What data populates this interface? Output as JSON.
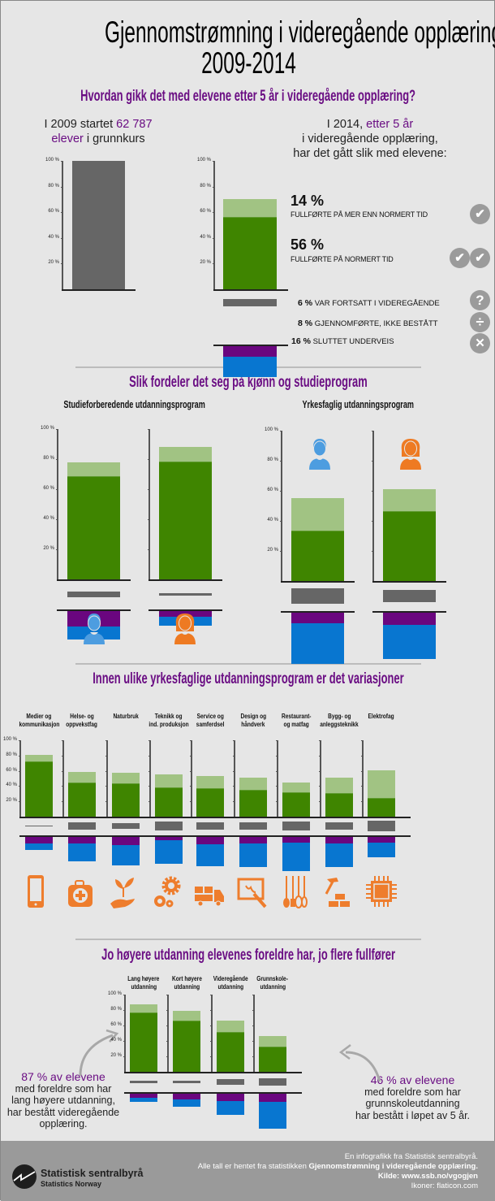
{
  "title": {
    "line1": "Gjennomstrømning i videregående opplæring,",
    "line2": "2009-2014"
  },
  "section1": {
    "heading": "Hvordan gikk det med elevene etter 5 år i videregående opplæring?",
    "left_intro": {
      "a": "I 2009 startet ",
      "b": "62 787",
      "c": "elever",
      "d": " i grunnkurs"
    },
    "right_intro": {
      "a": "I 2014, ",
      "b": "etter 5 år",
      "line2": "i videregående opplæring,",
      "line3": "har det gått slik med elevene:"
    },
    "outcomes": [
      {
        "pct": "14 %",
        "label": "FULLFØRTE PÅ MER ENN NORMERT TID",
        "icon": "check-circle-icon"
      },
      {
        "pct": "56 %",
        "label": "FULLFØRTE PÅ NORMERT TID",
        "icon": "double-check-circle-icon"
      },
      {
        "pct": "6 %",
        "label": "VAR FORTSATT I VIDEREGÅENDE",
        "icon": "question-circle-icon"
      },
      {
        "pct": "8 %",
        "label": "GJENNOMFØRTE, IKKE BESTÅTT",
        "icon": "divide-circle-icon"
      },
      {
        "pct": "16 %",
        "label": "SLUTTET UNDERVEIS",
        "icon": "x-circle-icon"
      }
    ]
  },
  "section2": {
    "heading": "Slik fordeler det seg på kjønn og studieprogram",
    "left_title": "Studieforberedende utdanningsprogram",
    "right_title": "Yrkesfaglig utdanningsprogram"
  },
  "section3": {
    "heading": "Innen ulike yrkesfaglige utdanningsprogram er det variasjoner",
    "programs": [
      {
        "l1": "Medier og",
        "l2": "kommunikasjon",
        "icon": "smartphone-icon"
      },
      {
        "l1": "Helse- og",
        "l2": "oppvekstfag",
        "icon": "first-aid-kit-icon"
      },
      {
        "l1": "Naturbruk",
        "l2": "",
        "icon": "plant-in-hand-icon"
      },
      {
        "l1": "Teknikk og",
        "l2": "ind. produksjon",
        "icon": "gears-icon"
      },
      {
        "l1": "Service og",
        "l2": "samferdsel",
        "icon": "truck-icon"
      },
      {
        "l1": "Design og",
        "l2": "håndverk",
        "icon": "easel-brush-icon"
      },
      {
        "l1": "Restaurant-",
        "l2": "og matfag",
        "icon": "kitchen-utensils-icon"
      },
      {
        "l1": "Bygg- og",
        "l2": "anleggsteknikk",
        "icon": "hammer-bricks-icon"
      },
      {
        "l1": "Elektrofag",
        "l2": "",
        "icon": "microchip-icon"
      }
    ]
  },
  "section4": {
    "heading": "Jo høyere utdanning elevenes foreldre har, jo flere fullfører",
    "groups": [
      {
        "l1": "Lang høyere",
        "l2": "utdanning"
      },
      {
        "l1": "Kort høyere",
        "l2": "utdanning"
      },
      {
        "l1": "Videregående",
        "l2": "utdanning"
      },
      {
        "l1": "Grunnskole-",
        "l2": "utdanning"
      }
    ],
    "left_note": {
      "highlight": "87 % av elevene",
      "lines": [
        "med foreldre som har",
        "lang høyere utdanning,",
        "har bestått videregående",
        "opplæring."
      ]
    },
    "right_note": {
      "highlight": "46 % av elevene",
      "lines": [
        "med foreldre som har",
        "grunnskoleutdanning",
        "har bestått i løpet av 5 år."
      ]
    }
  },
  "footer": {
    "logo_name": "Statistisk sentralbyrå",
    "logo_sub": "Statistics Norway",
    "line1": "En infografikk fra Statistisk sentralbyrå.",
    "line2a": "Alle tall er hentet fra statistikken ",
    "line2b": "Gjennomstrømning i videregående opplæring.",
    "line3": "Kilde: www.ssb.no/vgogjen",
    "line4": "Ikoner: flaticon.com"
  },
  "colors": {
    "completed_normal": "#3f8500",
    "completed_extra": "#a1c383",
    "still_in_school": "#666666",
    "not_passed": "#6a067f",
    "dropped_out": "#0876d0",
    "accent": "#6a0d83",
    "male": "#4d9de0",
    "female": "#ee7a22"
  },
  "chart_data": [
    {
      "id": "total2009",
      "type": "bar",
      "y_tick_labels": [
        "100 %",
        "80 %",
        "60 %",
        "40 %",
        "20 %"
      ],
      "ylim": [
        0,
        100
      ],
      "values": {
        "started": 100
      }
    },
    {
      "id": "total2014",
      "type": "bar",
      "y_tick_labels": [
        "100 %",
        "80 %",
        "60 %",
        "40 %",
        "20 %"
      ],
      "ylim": [
        0,
        100
      ],
      "values": {
        "normal": 56,
        "extra": 14,
        "still": 6,
        "notpassed": 8,
        "dropped": 16
      }
    },
    {
      "id": "sf_boy",
      "group": "Studieforberedende",
      "gender": "male",
      "type": "bar",
      "y_tick_labels": [
        "100 %",
        "80 %",
        "60 %",
        "40 %",
        "20 %"
      ],
      "values": {
        "normal": 68,
        "extra": 10,
        "still": 4,
        "notpassed": 10,
        "dropped": 9
      }
    },
    {
      "id": "sf_girl",
      "group": "Studieforberedende",
      "gender": "female",
      "type": "bar",
      "values": {
        "normal": 78,
        "extra": 10,
        "still": 2,
        "notpassed": 4,
        "dropped": 6
      }
    },
    {
      "id": "yf_boy",
      "group": "Yrkesfaglig",
      "gender": "male",
      "type": "bar",
      "y_tick_labels": [
        "100 %",
        "80 %",
        "60 %",
        "40 %",
        "20 %"
      ],
      "values": {
        "normal": 33,
        "extra": 22,
        "still": 10,
        "notpassed": 7,
        "dropped": 27
      }
    },
    {
      "id": "yf_girl",
      "group": "Yrkesfaglig",
      "gender": "female",
      "type": "bar",
      "values": {
        "normal": 46,
        "extra": 15,
        "still": 8,
        "notpassed": 8,
        "dropped": 23
      }
    },
    {
      "id": "sec0",
      "program": "Medier og kommunikasjon",
      "type": "bar",
      "y_tick_labels": [
        "100 %",
        "80 %",
        "60 %",
        "40 %",
        "20 %"
      ],
      "values": {
        "normal": 71,
        "extra": 10,
        "still": 2,
        "notpassed": 9,
        "dropped": 8
      }
    },
    {
      "id": "sec1",
      "program": "Helse- og oppvekstfag",
      "type": "bar",
      "values": {
        "normal": 44,
        "extra": 15,
        "still": 10,
        "notpassed": 9,
        "dropped": 23
      }
    },
    {
      "id": "sec2",
      "program": "Naturbruk",
      "type": "bar",
      "values": {
        "normal": 43,
        "extra": 14,
        "still": 8,
        "notpassed": 11,
        "dropped": 26
      }
    },
    {
      "id": "sec3",
      "program": "Teknikk og ind. produksjon",
      "type": "bar",
      "values": {
        "normal": 37,
        "extra": 18,
        "still": 12,
        "notpassed": 4,
        "dropped": 31
      }
    },
    {
      "id": "sec4",
      "program": "Service og samferdsel",
      "type": "bar",
      "values": {
        "normal": 36,
        "extra": 17,
        "still": 10,
        "notpassed": 10,
        "dropped": 28
      }
    },
    {
      "id": "sec5",
      "program": "Design og håndverk",
      "type": "bar",
      "values": {
        "normal": 34,
        "extra": 17,
        "still": 10,
        "notpassed": 9,
        "dropped": 30
      }
    },
    {
      "id": "sec6",
      "program": "Restaurant- og matfag",
      "type": "bar",
      "values": {
        "normal": 31,
        "extra": 14,
        "still": 11,
        "notpassed": 7,
        "dropped": 38
      }
    },
    {
      "id": "sec7",
      "program": "Bygg- og anleggsteknikk",
      "type": "bar",
      "values": {
        "normal": 30,
        "extra": 21,
        "still": 10,
        "notpassed": 8,
        "dropped": 31
      }
    },
    {
      "id": "sec8",
      "program": "Elektrofag",
      "type": "bar",
      "values": {
        "normal": 23,
        "extra": 38,
        "still": 13,
        "notpassed": 7,
        "dropped": 20
      }
    },
    {
      "id": "par0",
      "parents": "Lang høyere utdanning",
      "type": "bar",
      "y_tick_labels": [
        "100 %",
        "80 %",
        "60 %",
        "40 %",
        "20 %"
      ],
      "values": {
        "normal": 76,
        "extra": 11,
        "still": 3,
        "notpassed": 5,
        "dropped": 6
      }
    },
    {
      "id": "par1",
      "parents": "Kort høyere utdanning",
      "type": "bar",
      "values": {
        "normal": 65,
        "extra": 14,
        "still": 4,
        "notpassed": 7,
        "dropped": 10
      }
    },
    {
      "id": "par2",
      "parents": "Videregående utdanning",
      "type": "bar",
      "values": {
        "normal": 51,
        "extra": 15,
        "still": 7,
        "notpassed": 9,
        "dropped": 18
      }
    },
    {
      "id": "par3",
      "parents": "Grunnskoleutdanning",
      "type": "bar",
      "values": {
        "normal": 32,
        "extra": 14,
        "still": 9,
        "notpassed": 11,
        "dropped": 34
      }
    }
  ]
}
